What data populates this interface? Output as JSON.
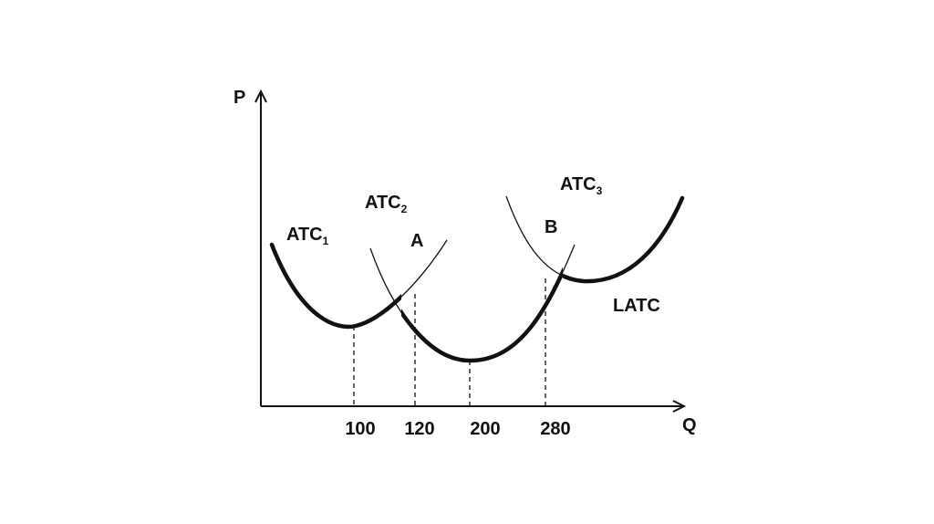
{
  "axes": {
    "y_label": "P",
    "x_label": "Q"
  },
  "curves": [
    {
      "label": "ATC",
      "sub": "1"
    },
    {
      "label": "ATC",
      "sub": "2"
    },
    {
      "label": "ATC",
      "sub": "3"
    },
    {
      "label": "LATC"
    }
  ],
  "points": [
    "A",
    "B"
  ],
  "x_labels": [
    100,
    120,
    200,
    280
  ]
}
